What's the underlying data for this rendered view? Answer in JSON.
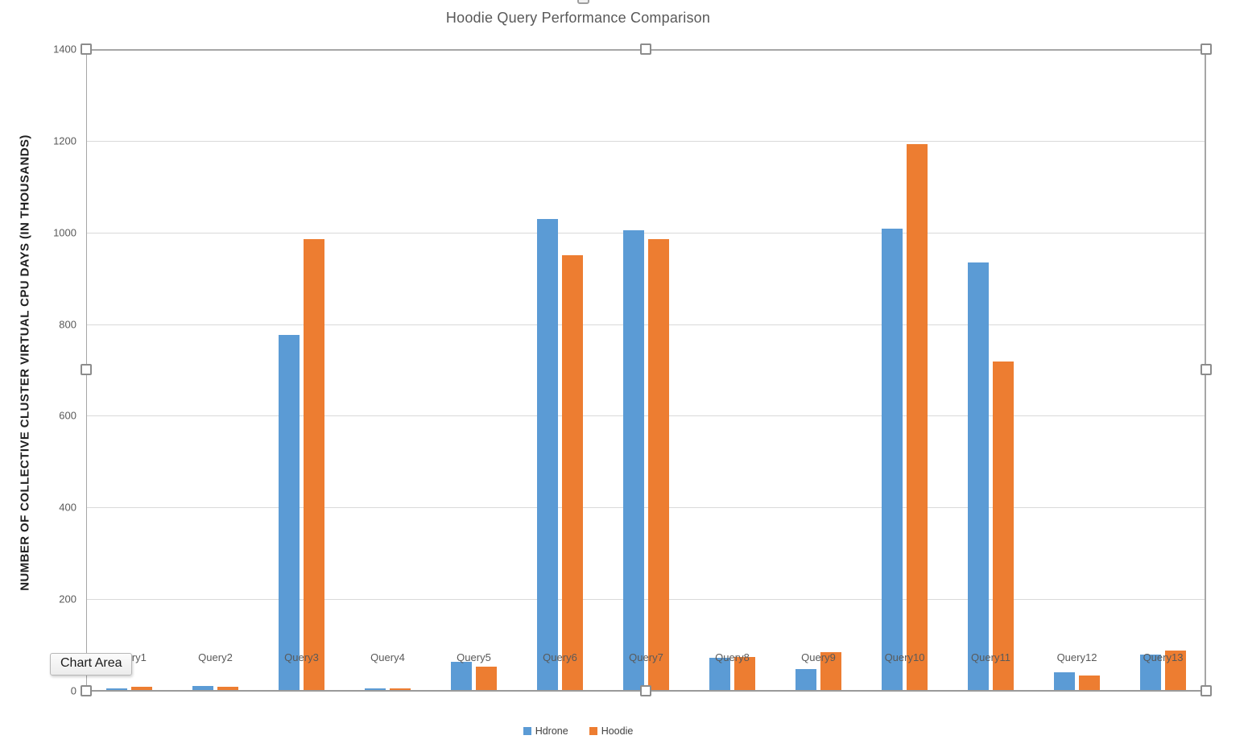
{
  "tooltip": {
    "label": "Chart Area"
  },
  "chart_data": {
    "type": "bar",
    "title": "Hoodie Query Performance Comparison",
    "xlabel": "",
    "ylabel": "NUMBER OF COLLECTIVE CLUSTER VIRTUAL CPU DAYS (IN THOUSANDS)",
    "ylim": [
      0,
      1400
    ],
    "yticks": [
      0,
      200,
      400,
      600,
      800,
      1000,
      1200,
      1400
    ],
    "grid": true,
    "legend_position": "bottom",
    "categories": [
      "Query1",
      "Query2",
      "Query3",
      "Query4",
      "Query5",
      "Query6",
      "Query7",
      "Query8",
      "Query9",
      "Query10",
      "Query11",
      "Query12",
      "Query13"
    ],
    "series": [
      {
        "name": "Hdrone",
        "color": "#5B9BD5",
        "values": [
          5,
          10,
          777,
          5,
          63,
          1030,
          1005,
          72,
          48,
          1008,
          935,
          41,
          79
        ]
      },
      {
        "name": "Hoodie",
        "color": "#ED7D31",
        "values": [
          9,
          9,
          985,
          6,
          52,
          950,
          985,
          73,
          85,
          1193,
          718,
          33,
          88
        ]
      }
    ]
  },
  "colors": {
    "gridline": "#d9d9d9",
    "axis": "#a6a6a6",
    "title_text": "#595959",
    "tick_text": "#595959"
  },
  "selection": {
    "state": "chart-area-selected"
  }
}
